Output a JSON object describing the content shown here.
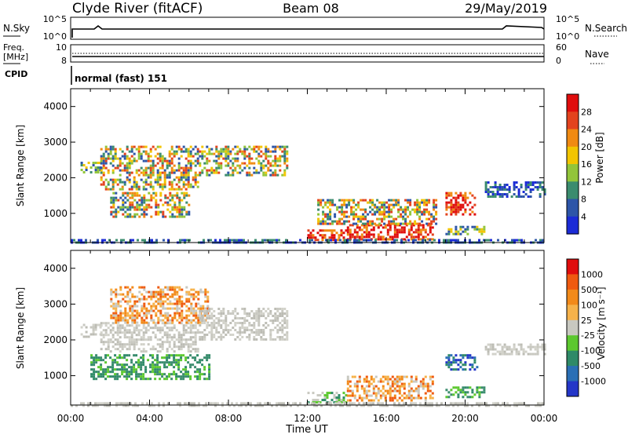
{
  "header": {
    "station": "Clyde River (fitACF)",
    "beam": "Beam 08",
    "date": "29/May/2019"
  },
  "top_panels": {
    "nsky_label": "N.Sky",
    "nsky_ticks": [
      "10^5",
      "10^0"
    ],
    "nsearch_label": "N.Search",
    "nsearch_ticks": [
      "10^5",
      "10^0"
    ],
    "freq_label_1": "Freq.",
    "freq_label_2": "[MHz]",
    "freq_ticks": [
      "10",
      "8"
    ],
    "nave_label": "Nave",
    "nave_ticks": [
      "60",
      "0"
    ],
    "cpid_label": "CPID",
    "cpid_text": "normal (fast) 151"
  },
  "chart_data": [
    {
      "type": "heatmap",
      "name": "power-panel",
      "xlabel": "",
      "ylabel": "Slant Range [km]",
      "ylim": [
        180,
        4500
      ],
      "y_ticks": [
        "1000",
        "2000",
        "3000",
        "4000"
      ],
      "colorbar_label": "Power [dB]",
      "colorbar_ticks": [
        "4",
        "8",
        "12",
        "16",
        "20",
        "24",
        "28"
      ],
      "colorbar_colors": [
        "#1b2bd6",
        "#2d55a8",
        "#3b8c6e",
        "#92c53a",
        "#f2c500",
        "#f08a12",
        "#e3431e",
        "#e00d0d"
      ],
      "regions": [
        {
          "t0": 0.5,
          "t1": 1.5,
          "r0": 2150,
          "r1": 2450,
          "level": "mid"
        },
        {
          "t0": 1.5,
          "t1": 6.5,
          "r0": 1700,
          "r1": 2900,
          "level": "mixed"
        },
        {
          "t0": 6.5,
          "t1": 11.0,
          "r0": 2100,
          "r1": 2900,
          "level": "mixed"
        },
        {
          "t0": 2.0,
          "t1": 6.0,
          "r0": 900,
          "r1": 1600,
          "level": "mixed"
        },
        {
          "t0": 12.0,
          "t1": 14.0,
          "r0": 250,
          "r1": 550,
          "level": "high"
        },
        {
          "t0": 14.0,
          "t1": 18.3,
          "r0": 300,
          "r1": 700,
          "level": "high"
        },
        {
          "t0": 12.5,
          "t1": 18.5,
          "r0": 700,
          "r1": 1400,
          "level": "mixed"
        },
        {
          "t0": 19.0,
          "t1": 20.5,
          "r0": 1000,
          "r1": 1600,
          "level": "high"
        },
        {
          "t0": 19.0,
          "t1": 21.0,
          "r0": 400,
          "r1": 650,
          "level": "mid"
        },
        {
          "t0": 21.0,
          "t1": 24.0,
          "r0": 1500,
          "r1": 1900,
          "level": "low"
        },
        {
          "t0": 0.0,
          "t1": 24.0,
          "r0": 180,
          "r1": 280,
          "level": "low"
        }
      ]
    },
    {
      "type": "heatmap",
      "name": "velocity-panel",
      "xlabel": "Time UT",
      "ylabel": "Slant Range [km]",
      "ylim": [
        180,
        4500
      ],
      "y_ticks": [
        "1000",
        "2000",
        "3000",
        "4000"
      ],
      "x_ticks": [
        "00:00",
        "04:00",
        "08:00",
        "12:00",
        "16:00",
        "20:00",
        "00:00"
      ],
      "colorbar_label": "Velocity [m s⁻¹]",
      "colorbar_ticks": [
        "1000",
        "500",
        "100",
        "25",
        "-25",
        "-100",
        "-500",
        "-1000"
      ],
      "colorbar_colors": [
        "#2436c8",
        "#2a6fb5",
        "#2f8a68",
        "#5cc82f",
        "#c8c8c0",
        "#f6b24a",
        "#f28a1a",
        "#ef5a10",
        "#e00d0d"
      ],
      "regions": [
        {
          "t0": 0.5,
          "t1": 1.5,
          "r0": 2100,
          "r1": 2450,
          "level": "grey"
        },
        {
          "t0": 1.5,
          "t1": 6.5,
          "r0": 1700,
          "r1": 2500,
          "level": "grey"
        },
        {
          "t0": 2.0,
          "t1": 7.0,
          "r0": 2500,
          "r1": 3500,
          "level": "orange"
        },
        {
          "t0": 6.5,
          "t1": 11.0,
          "r0": 2000,
          "r1": 2900,
          "level": "grey"
        },
        {
          "t0": 1.0,
          "t1": 7.0,
          "r0": 900,
          "r1": 1600,
          "level": "teal"
        },
        {
          "t0": 12.0,
          "t1": 14.0,
          "r0": 250,
          "r1": 550,
          "level": "green"
        },
        {
          "t0": 14.0,
          "t1": 18.3,
          "r0": 300,
          "r1": 1000,
          "level": "orange"
        },
        {
          "t0": 19.0,
          "t1": 20.6,
          "r0": 1200,
          "r1": 1600,
          "level": "blue"
        },
        {
          "t0": 19.0,
          "t1": 21.0,
          "r0": 400,
          "r1": 700,
          "level": "teal"
        },
        {
          "t0": 21.0,
          "t1": 24.0,
          "r0": 1600,
          "r1": 1900,
          "level": "grey"
        },
        {
          "t0": 0.0,
          "t1": 24.0,
          "r0": 180,
          "r1": 260,
          "level": "grey"
        }
      ]
    }
  ]
}
